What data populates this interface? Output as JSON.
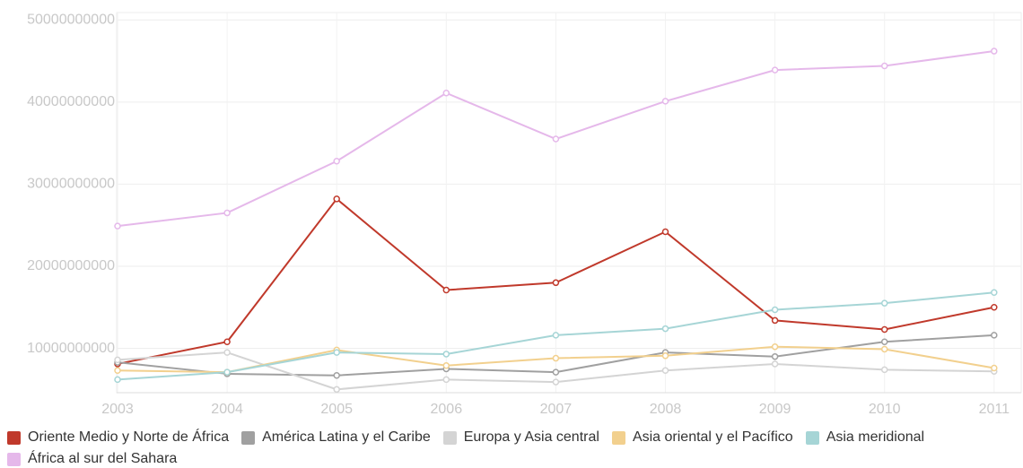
{
  "chart_data": {
    "type": "line",
    "categories": [
      "2003",
      "2004",
      "2005",
      "2006",
      "2007",
      "2008",
      "2009",
      "2010",
      "2011"
    ],
    "series": [
      {
        "name": "Oriente Medio y Norte de África",
        "color": "#c0392b",
        "values": [
          8100000000,
          10800000000,
          28200000000,
          17100000000,
          18000000000,
          24200000000,
          13400000000,
          12300000000,
          15000000000
        ]
      },
      {
        "name": "América Latina y el Caribe",
        "color": "#a0a0a0",
        "values": [
          8300000000,
          6900000000,
          6700000000,
          7500000000,
          7100000000,
          9500000000,
          9000000000,
          10800000000,
          11600000000
        ]
      },
      {
        "name": "Europa y Asia central",
        "color": "#d4d4d4",
        "values": [
          8600000000,
          9500000000,
          5000000000,
          6200000000,
          5900000000,
          7300000000,
          8100000000,
          7400000000,
          7200000000
        ]
      },
      {
        "name": "Asia oriental y el Pacífico",
        "color": "#f2d08e",
        "values": [
          7300000000,
          7100000000,
          9800000000,
          7900000000,
          8800000000,
          9100000000,
          10200000000,
          9900000000,
          7600000000
        ]
      },
      {
        "name": "Asia meridional",
        "color": "#a6d5d6",
        "values": [
          6200000000,
          7100000000,
          9500000000,
          9300000000,
          11600000000,
          12400000000,
          14700000000,
          15500000000,
          16800000000
        ]
      },
      {
        "name": "África al sur del Sahara",
        "color": "#e5b8ea",
        "values": [
          24900000000,
          26500000000,
          32800000000,
          41100000000,
          35500000000,
          40100000000,
          43900000000,
          44400000000,
          46200000000
        ]
      }
    ],
    "ylim": [
      4600000000,
      50900000000
    ],
    "yticks": [
      10000000000,
      20000000000,
      30000000000,
      40000000000,
      50000000000
    ],
    "grid": true
  }
}
